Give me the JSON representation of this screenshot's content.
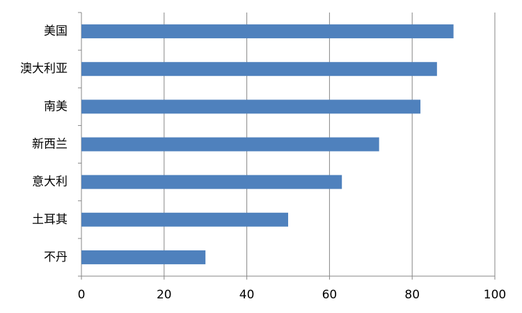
{
  "chart_data": {
    "type": "bar",
    "orientation": "horizontal",
    "categories": [
      "美国",
      "澳大利亚",
      "南美",
      "新西兰",
      "意大利",
      "土耳其",
      "不丹"
    ],
    "values": [
      90,
      86,
      82,
      72,
      63,
      50,
      30
    ],
    "color": "#4f81bd",
    "xlim": [
      0,
      100
    ],
    "xticks": [
      0,
      20,
      40,
      60,
      80,
      100
    ],
    "grid": true
  }
}
